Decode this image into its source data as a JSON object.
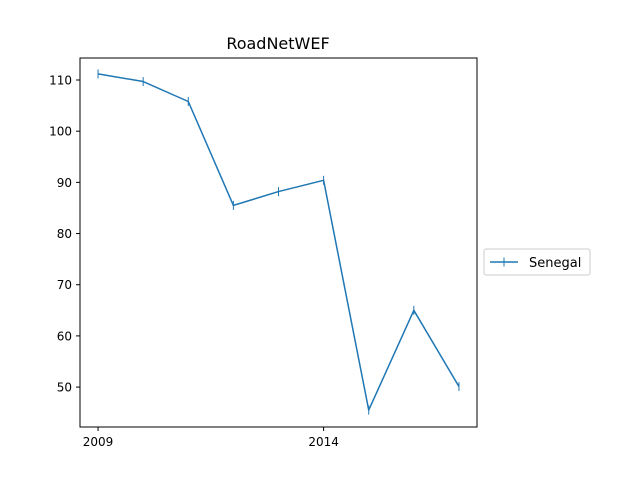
{
  "chart_data": {
    "type": "line",
    "title": "RoadNetWEF",
    "xlabel": "",
    "ylabel": "",
    "x": [
      2009,
      2010,
      2011,
      2012,
      2013,
      2014,
      2015,
      2016,
      2017
    ],
    "x_ticks": [
      "2009",
      "2014"
    ],
    "y_ticks": [
      "50",
      "60",
      "70",
      "80",
      "90",
      "100",
      "110"
    ],
    "xlim": [
      2008.6,
      2017.4
    ],
    "ylim": [
      42.2,
      114.3
    ],
    "grid": false,
    "legend_position": "center-right-outside",
    "series": [
      {
        "name": "Senegal",
        "color": "#1f77b4",
        "marker": "vertical-line",
        "values": [
          111.2,
          109.7,
          105.8,
          85.5,
          88.2,
          90.4,
          45.5,
          65.0,
          50.1
        ]
      }
    ]
  }
}
